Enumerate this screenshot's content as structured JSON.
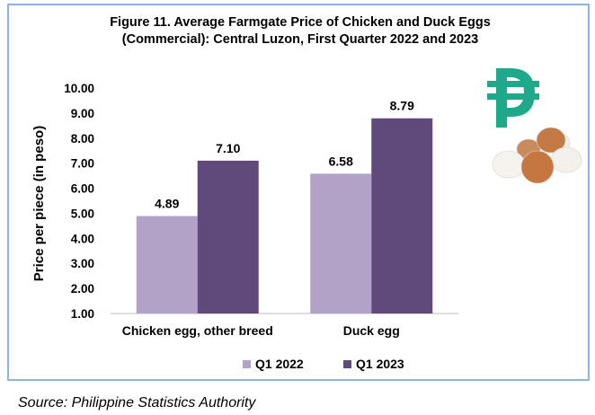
{
  "chart_data": {
    "type": "bar",
    "title_line1": "Figure 11. Average Farmgate Price of Chicken and Duck Eggs",
    "title_line2": "(Commercial): Central Luzon, First Quarter 2022 and 2023",
    "ylabel": "Price per piece (in peso)",
    "xlabel": "",
    "ylim": [
      1.0,
      10.0
    ],
    "yticks": [
      "1.00",
      "2.00",
      "3.00",
      "4.00",
      "5.00",
      "6.00",
      "7.00",
      "8.00",
      "9.00",
      "10.00"
    ],
    "categories": [
      "Chicken egg, other breed",
      "Duck egg"
    ],
    "series": [
      {
        "name": "Q1 2022",
        "color": "#b3a2c7",
        "values": [
          4.89,
          6.58
        ],
        "labels": [
          "4.89",
          "6.58"
        ]
      },
      {
        "name": "Q1 2023",
        "color": "#604a7b",
        "values": [
          7.1,
          8.79
        ],
        "labels": [
          "7.10",
          "8.79"
        ]
      }
    ],
    "legend_position": "bottom",
    "grid": false
  },
  "decoration": {
    "peso_icon_color": "#1fa98a",
    "egg_icon": "eggs-illustration"
  },
  "source": "Source: Philippine Statistics Authority"
}
